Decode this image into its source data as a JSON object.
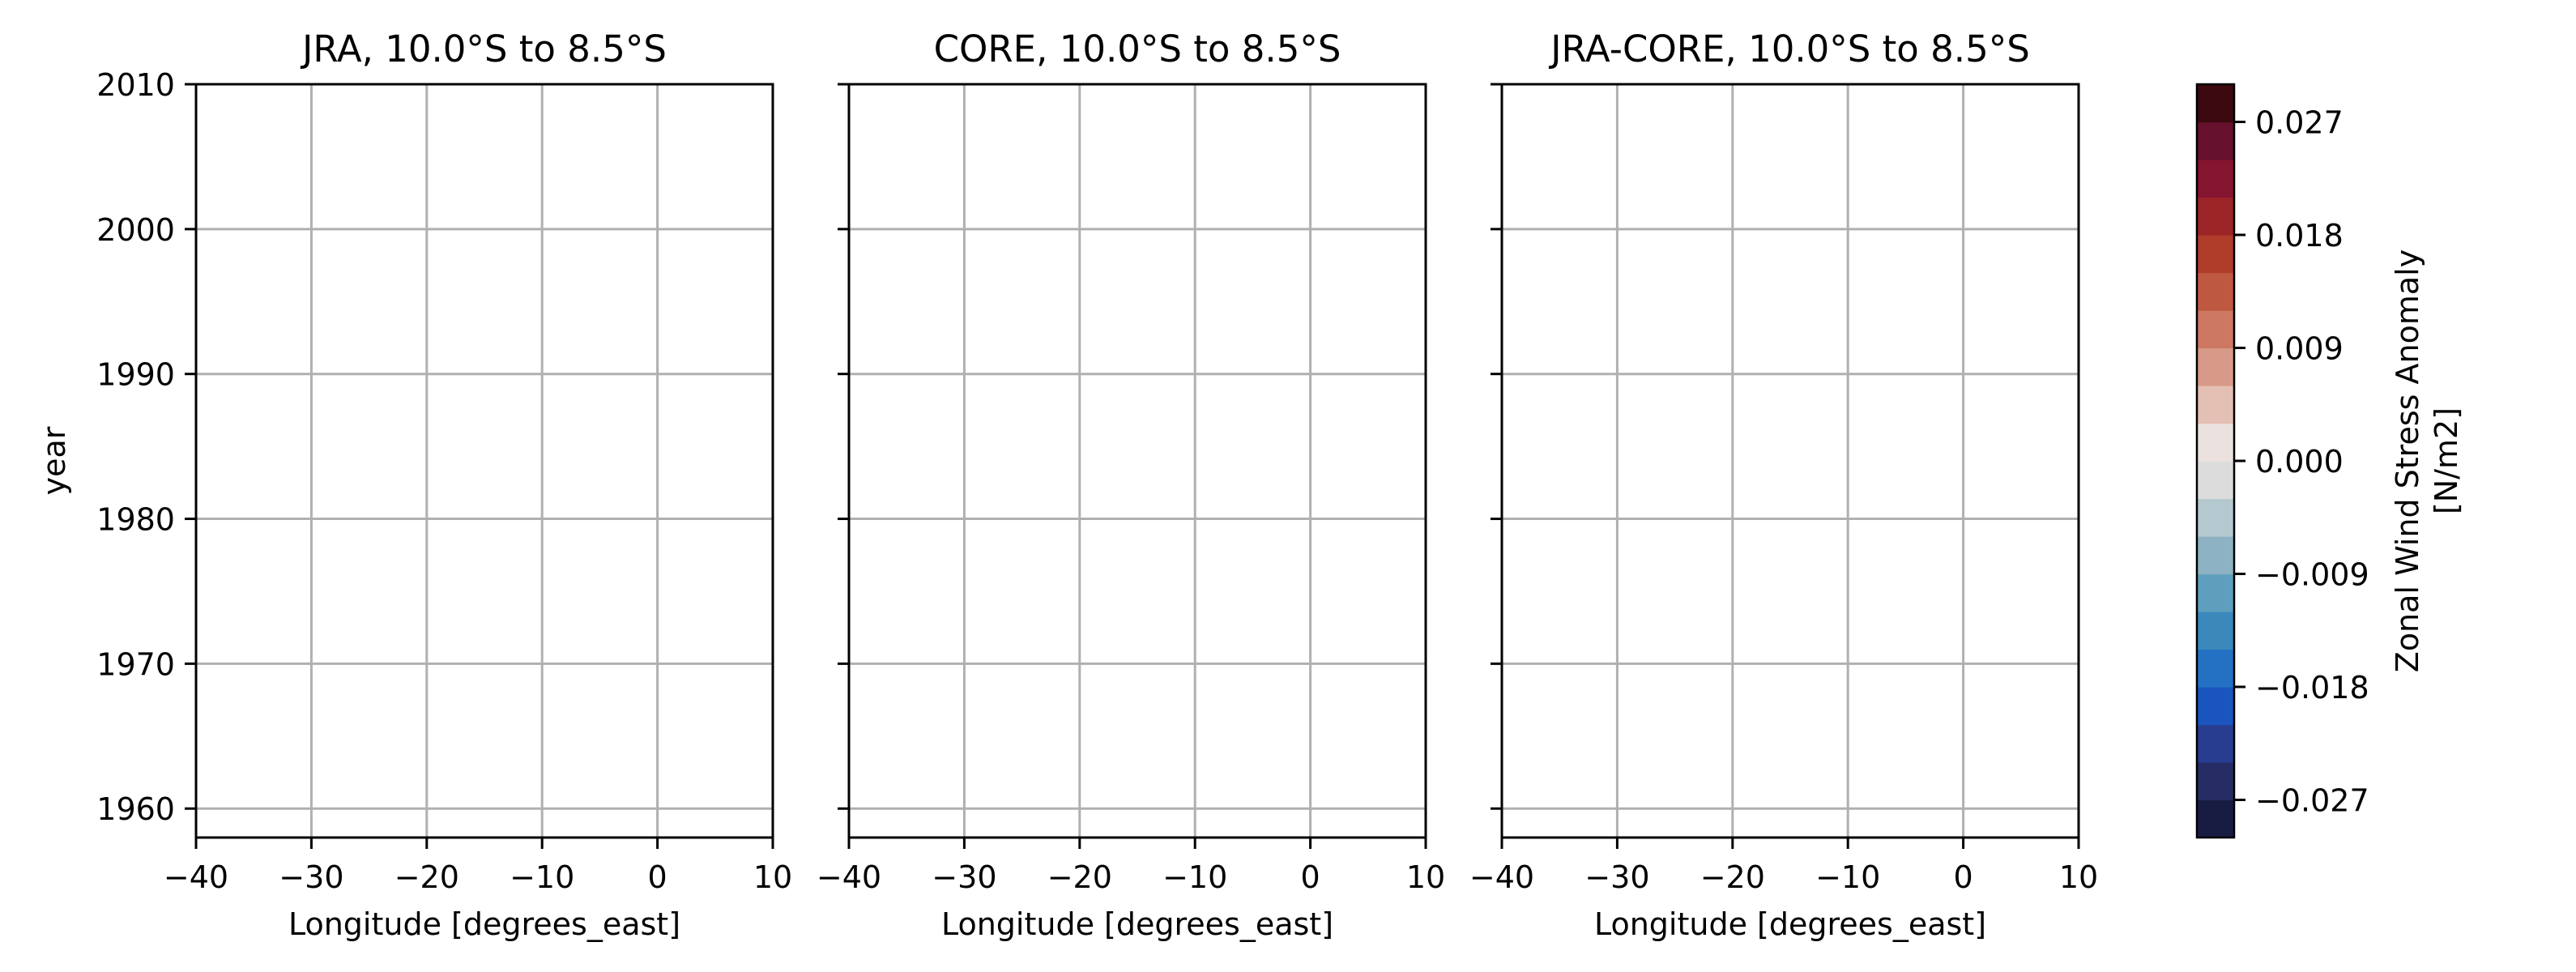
{
  "colors": {
    "grid": "#b0b0b0",
    "axis": "#000000",
    "background": "#ffffff",
    "colorbar_levels": [
      "#181c43",
      "#262d64",
      "#283d8f",
      "#1a55bf",
      "#2471c3",
      "#3b88bb",
      "#5f9fbd",
      "#8db2c4",
      "#b4c8cf",
      "#dcdcdc",
      "#ebe2df",
      "#e4bfb4",
      "#d89a88",
      "#cd7863",
      "#bf5841",
      "#b03c2a",
      "#9d2427",
      "#851530",
      "#66112d",
      "#3c0911"
    ]
  },
  "chart_data": [
    {
      "type": "heatmap",
      "title": "JRA, 10.0°S to 8.5°S",
      "xlabel": "Longitude [degrees_east]",
      "ylabel": "year",
      "xlim": [
        -40,
        10
      ],
      "ylim": [
        1958,
        2010
      ],
      "xticks": [
        -40,
        -30,
        -20,
        -10,
        0,
        10
      ],
      "xtick_labels": [
        "−40",
        "−30",
        "−20",
        "−10",
        "0",
        "10"
      ],
      "yticks": [
        1960,
        1970,
        1980,
        1990,
        2000,
        2010
      ],
      "ytick_labels": [
        "1960",
        "1970",
        "1980",
        "1990",
        "2000",
        "2010"
      ],
      "grid": true,
      "values": []
    },
    {
      "type": "heatmap",
      "title": "CORE, 10.0°S to 8.5°S",
      "xlabel": "Longitude [degrees_east]",
      "ylabel": "",
      "xlim": [
        -40,
        10
      ],
      "ylim": [
        1958,
        2010
      ],
      "xticks": [
        -40,
        -30,
        -20,
        -10,
        0,
        10
      ],
      "xtick_labels": [
        "−40",
        "−30",
        "−20",
        "−10",
        "0",
        "10"
      ],
      "yticks": [
        1960,
        1970,
        1980,
        1990,
        2000,
        2010
      ],
      "ytick_labels": [],
      "grid": true,
      "values": []
    },
    {
      "type": "heatmap",
      "title": "JRA-CORE, 10.0°S to 8.5°S",
      "xlabel": "Longitude [degrees_east]",
      "ylabel": "",
      "xlim": [
        -40,
        10
      ],
      "ylim": [
        1958,
        2010
      ],
      "xticks": [
        -40,
        -30,
        -20,
        -10,
        0,
        10
      ],
      "xtick_labels": [
        "−40",
        "−30",
        "−20",
        "−10",
        "0",
        "10"
      ],
      "yticks": [
        1960,
        1970,
        1980,
        1990,
        2000,
        2010
      ],
      "ytick_labels": [],
      "grid": true,
      "values": []
    }
  ],
  "colorbar": {
    "label_lines": [
      "Zonal Wind Stress Anomaly",
      "[N/m2]"
    ],
    "range": [
      -0.03,
      0.03
    ],
    "ticks": [
      -0.027,
      -0.018,
      -0.009,
      0.0,
      0.009,
      0.018,
      0.027
    ],
    "tick_labels": [
      "−0.027",
      "−0.018",
      "−0.009",
      "0.000",
      "0.009",
      "0.018",
      "0.027"
    ]
  }
}
